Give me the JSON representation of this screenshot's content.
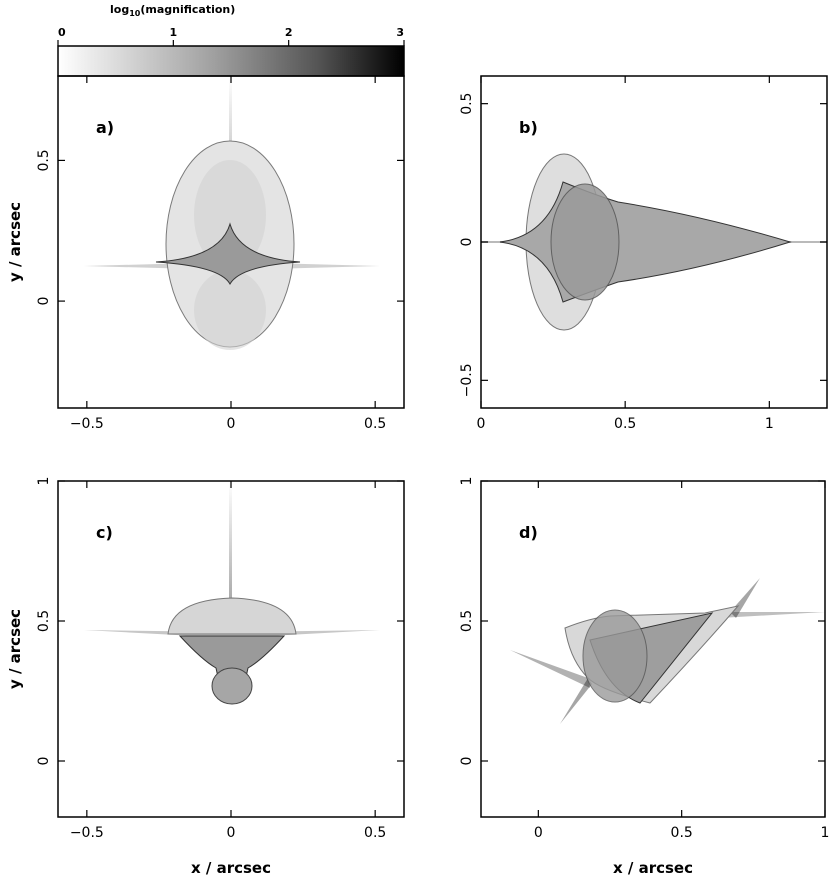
{
  "colorbar": {
    "label": "log",
    "label_sub": "10",
    "label_rest": "(magnification)",
    "range": [
      0,
      3
    ],
    "ticks": [
      0,
      1,
      2,
      3
    ],
    "tick_labels": [
      "0",
      "1",
      "2",
      "3"
    ]
  },
  "chart_data": [
    {
      "type": "heatmap",
      "panel_label": "a)",
      "xlim": [
        -0.6,
        0.6
      ],
      "ylim": [
        -0.38,
        0.8
      ],
      "xticks": [
        -0.5,
        0,
        0.5
      ],
      "xtick_labels": [
        "−0.5",
        "0",
        "0.5"
      ],
      "yticks": [
        0,
        0.5
      ],
      "ytick_labels": [
        "0",
        "0.5"
      ],
      "show_xtick_labels": true,
      "show_ytick_labels": true,
      "ylabel": "y / arcsec",
      "xlabel": ""
    },
    {
      "type": "heatmap",
      "panel_label": "b)",
      "xlim": [
        0,
        1.2
      ],
      "ylim": [
        -0.6,
        0.6
      ],
      "xticks": [
        0,
        0.5,
        1
      ],
      "xtick_labels": [
        "0",
        "0.5",
        "1"
      ],
      "yticks": [
        -0.5,
        0,
        0.5
      ],
      "ytick_labels": [
        "−0.5",
        "0",
        "0.5"
      ],
      "show_xtick_labels": true,
      "show_ytick_labels": true,
      "ylabel": "",
      "xlabel": ""
    },
    {
      "type": "heatmap",
      "panel_label": "c)",
      "xlim": [
        -0.6,
        0.6
      ],
      "ylim": [
        -0.2,
        1.0
      ],
      "xticks": [
        -0.5,
        0,
        0.5
      ],
      "xtick_labels": [
        "−0.5",
        "0",
        "0.5"
      ],
      "yticks": [
        0,
        0.5,
        1
      ],
      "ytick_labels": [
        "0",
        "0.5",
        "1"
      ],
      "show_xtick_labels": true,
      "show_ytick_labels": true,
      "ylabel": "y / arcsec",
      "xlabel": "x / arcsec"
    },
    {
      "type": "heatmap",
      "panel_label": "d)",
      "xlim": [
        -0.2,
        1.0
      ],
      "ylim": [
        -0.2,
        1.0
      ],
      "xticks": [
        0,
        0.5,
        1
      ],
      "xtick_labels": [
        "0",
        "0.5",
        "1"
      ],
      "yticks": [
        0,
        0.5,
        1
      ],
      "ytick_labels": [
        "0",
        "0.5",
        "1"
      ],
      "show_xtick_labels": true,
      "show_ytick_labels": true,
      "ylabel": "",
      "xlabel": "x / arcsec"
    }
  ]
}
